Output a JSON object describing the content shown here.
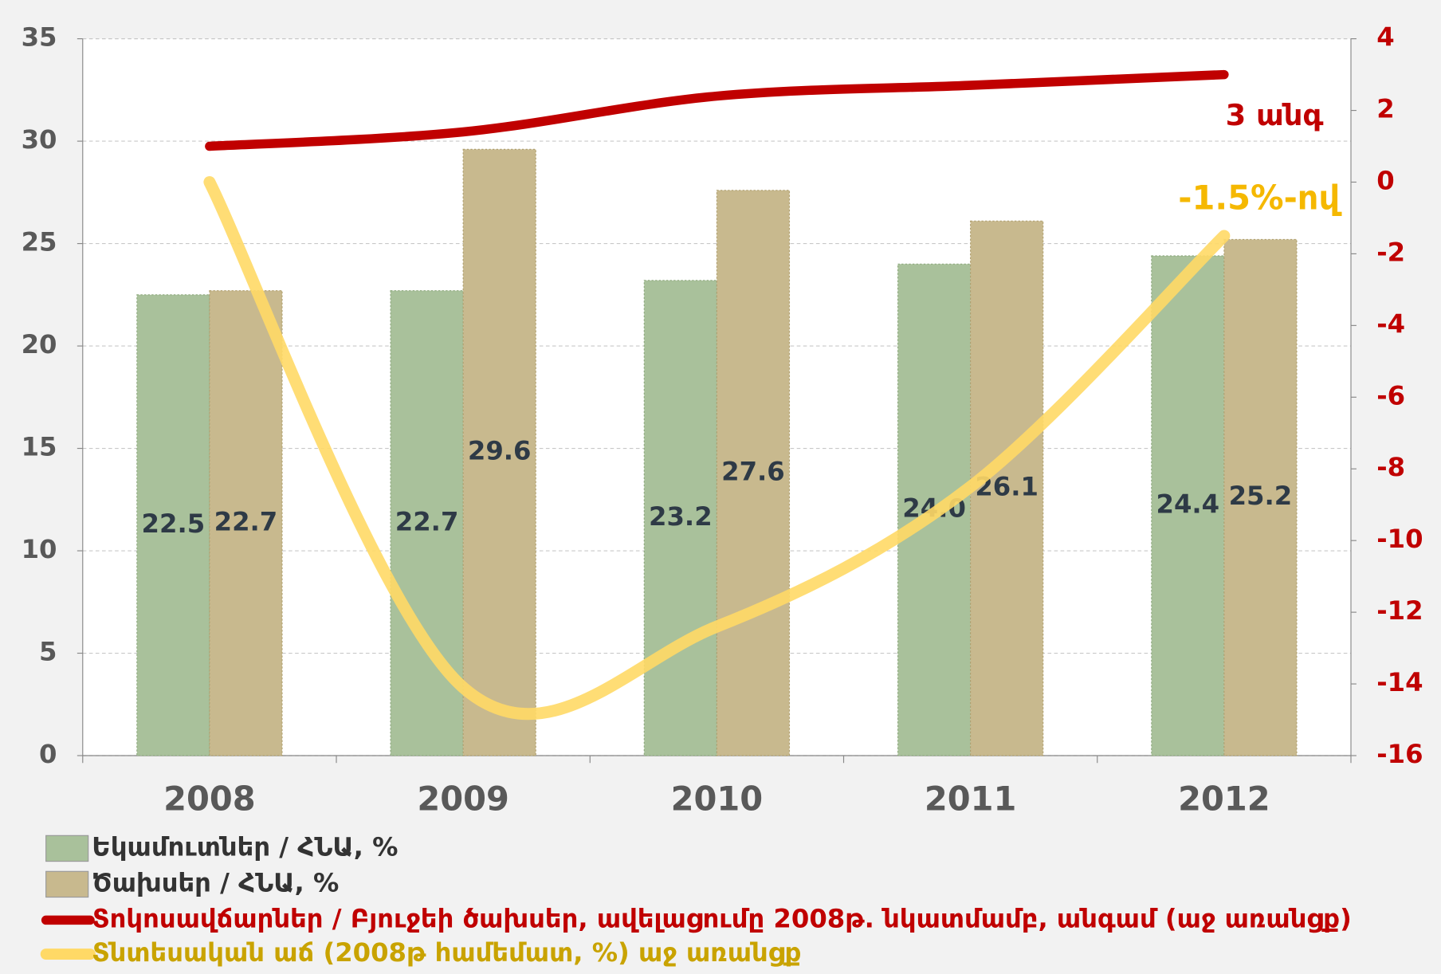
{
  "chart_data": {
    "type": "bar",
    "categories": [
      "2008",
      "2009",
      "2010",
      "2011",
      "2012"
    ],
    "series": [
      {
        "name": "Եկամուտներ / ՀՆԱ, %",
        "color": "#a9c19b",
        "values": [
          22.5,
          22.7,
          23.2,
          24.0,
          24.4
        ],
        "value_labels": [
          "22.5",
          "22.7",
          "23.2",
          "24.0",
          "24.4"
        ]
      },
      {
        "name": "Ծախսեր / ՀՆԱ, %",
        "color": "#c8b98e",
        "values": [
          22.7,
          29.6,
          27.6,
          26.1,
          25.2
        ]
      },
      {
        "name": "Տոկոսավճարներ / Բյուջեի ծախսեր, ավելացումը 2008թ. նկատմամբ, անգամ (աջ առանցք)",
        "type": "line",
        "axis": "y2",
        "color": "#c00000",
        "values": [
          1,
          1.4,
          2.4,
          2.7,
          3.0
        ]
      },
      {
        "name": "Տնտեսական աճ (2008թ համեմատ, %) աջ առանցք",
        "type": "line",
        "axis": "y2",
        "color": "#ffd966",
        "values": [
          0,
          -14.1,
          -12.4,
          -8.5,
          -1.5
        ]
      }
    ],
    "annotations": [
      "3 անգ",
      "-1.5%-ով"
    ],
    "ylim": [
      0,
      35
    ],
    "yticks": [
      0,
      5,
      10,
      15,
      20,
      25,
      30,
      35
    ],
    "y2lim": [
      -16,
      4
    ],
    "y2ticks": [
      -16,
      -14,
      -12,
      -10,
      -8,
      -6,
      -4,
      -2,
      0,
      2,
      4
    ],
    "grid": true
  }
}
